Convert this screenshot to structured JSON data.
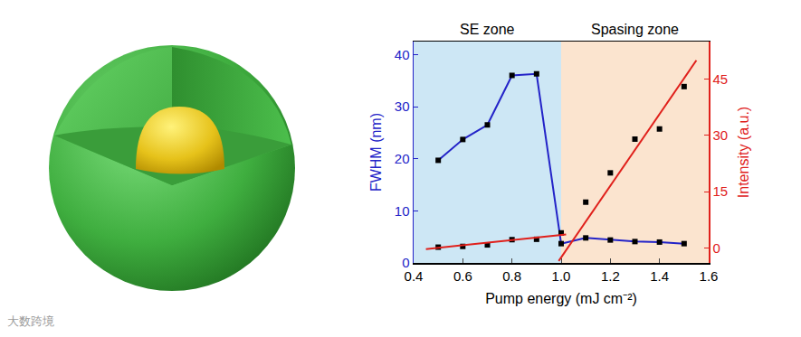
{
  "chart_data": {
    "type": "line",
    "x_label": "Pump energy (mJ cm⁻²)",
    "y_label": "FWHM (nm)",
    "y2_label": "Intensity (a.u.)",
    "xlim": [
      0.4,
      1.6
    ],
    "xticks": [
      0.4,
      0.6,
      0.8,
      {
        "value": 1,
        "label": "1.0"
      },
      1.2,
      1.4,
      1.6
    ],
    "ylim": [
      0,
      42.5
    ],
    "yticks": [
      0,
      10,
      20,
      30,
      40
    ],
    "y2lim": [
      -4,
      55
    ],
    "y2ticks": [
      0,
      15,
      30,
      45
    ],
    "grid": false,
    "zones": [
      {
        "label": "SE zone",
        "x": [
          0.4,
          1.0
        ],
        "color": "#cde7f5"
      },
      {
        "label": "Spasing zone",
        "x": [
          1.0,
          1.6
        ],
        "color": "#fbe4cf"
      }
    ],
    "series": [
      {
        "type": "line",
        "color": "#2323c8",
        "marker": "square",
        "x": [
          0.5,
          0.6,
          0.7,
          0.8,
          0.9,
          1.0,
          1.1,
          1.2,
          1.3,
          1.4,
          1.5
        ],
        "values": [
          19.7,
          23.7,
          26.5,
          36.0,
          36.3,
          3.7,
          4.8,
          4.4,
          4.1,
          4.0,
          3.7
        ]
      },
      {
        "type": "scatter",
        "axis": "y2",
        "color": "#000000",
        "marker": "square",
        "x": [
          0.5,
          0.6,
          0.7,
          0.8,
          0.9,
          1.0,
          1.1,
          1.2,
          1.3,
          1.4,
          1.5
        ],
        "values": [
          0.2,
          0.4,
          0.8,
          2.2,
          2.3,
          4.0,
          12.2,
          20.0,
          29.0,
          31.7,
          43.0
        ]
      },
      {
        "type": "line",
        "axis": "y2",
        "color": "#e0201b",
        "x": [
          0.45,
          1.02
        ],
        "values": [
          -0.3,
          3.6
        ]
      },
      {
        "type": "line",
        "axis": "y2",
        "color": "#e0201b",
        "x": [
          0.99,
          1.55
        ],
        "values": [
          -3.5,
          50
        ]
      }
    ],
    "watermark": "大数跨境"
  }
}
